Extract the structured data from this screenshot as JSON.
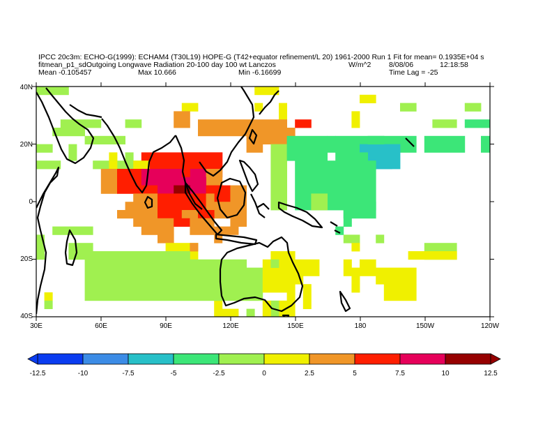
{
  "header": {
    "line1": "IPCC 20c3m: ECHO-G(1999): ECHAM4 (T30L19) HOPE-G (T42+equator refinement/L 20) 1961-2000 Run 1 Fit for mean= 0.1935E+04 s",
    "line2_var": "fitmean_p1_sdOutgoing Longwave Radiation 20-100 day 100 wt Lanczos",
    "units": "W/m^2",
    "date": "8/08/06",
    "time": "12:18:58",
    "mean": "Mean -0.105457",
    "max": "Max 10.666",
    "min": "Min -6.16699",
    "lag": "Time Lag = -25"
  },
  "axes": {
    "lon_labels": [
      "30E",
      "60E",
      "90E",
      "120E",
      "150E",
      "180",
      "150W",
      "120W"
    ],
    "lat_labels": [
      "40N",
      "20N",
      "0",
      "20S",
      "40S"
    ]
  },
  "colorbar": {
    "labels": [
      "-12.5",
      "-10",
      "-7.5",
      "-5",
      "-2.5",
      "0",
      "2.5",
      "5",
      "7.5",
      "10",
      "12.5"
    ],
    "colors": [
      "#0a3cf0",
      "#3c8ce6",
      "#28c0c8",
      "#3ce678",
      "#a0f050",
      "#f0f000",
      "#f09628",
      "#ff1e00",
      "#e6005a",
      "#960000"
    ]
  },
  "colors": {
    "land_outline": "#000000",
    "frame": "#000000"
  }
}
